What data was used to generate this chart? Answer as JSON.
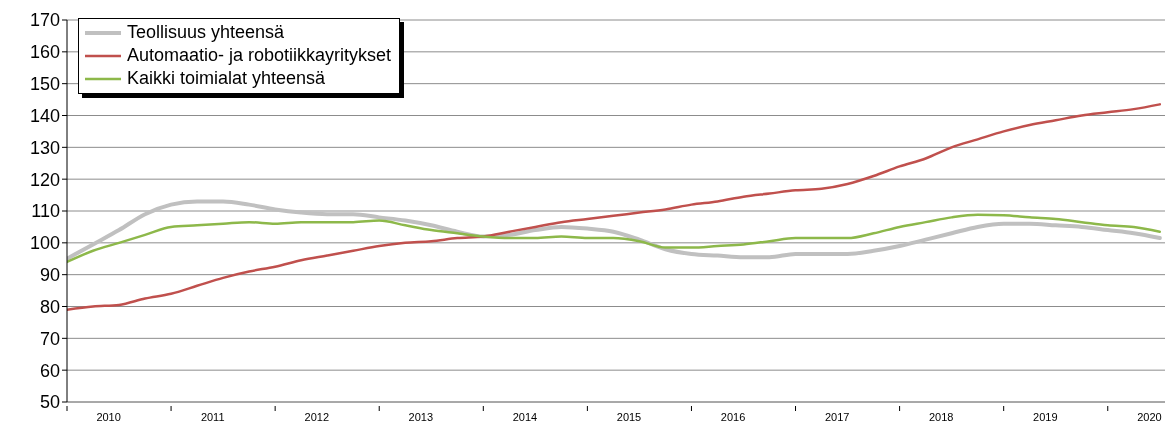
{
  "chart_data": {
    "type": "line",
    "x": [
      2010,
      2010.25,
      2010.5,
      2010.75,
      2011,
      2011.25,
      2011.5,
      2011.75,
      2012,
      2012.25,
      2012.5,
      2012.75,
      2013,
      2013.25,
      2013.5,
      2013.75,
      2014,
      2014.25,
      2014.5,
      2014.75,
      2015,
      2015.25,
      2015.5,
      2015.75,
      2016,
      2016.25,
      2016.5,
      2016.75,
      2017,
      2017.25,
      2017.5,
      2017.75,
      2018,
      2018.25,
      2018.5,
      2018.75,
      2019,
      2019.25,
      2019.5,
      2019.75,
      2020,
      2020.25,
      2020.5
    ],
    "series": [
      {
        "name": "Teollisuus yhteensä",
        "color": "#c0c0c0",
        "values": [
          95,
          99.5,
          104,
          109,
          112,
          113,
          113,
          112,
          110.5,
          109.5,
          109,
          109,
          108,
          107,
          105.5,
          103.5,
          102,
          102.5,
          104,
          105,
          104.5,
          103.5,
          101,
          98,
          96.5,
          96,
          95.5,
          95.5,
          96.5,
          96.5,
          96.5,
          97.5,
          99,
          101,
          103,
          105,
          106,
          106,
          105.5,
          105,
          104,
          103,
          101.5
        ]
      },
      {
        "name": "Automaatio- ja robotiikkayritykset",
        "color": "#c0504d",
        "values": [
          79,
          80,
          80.5,
          82.5,
          84,
          86.5,
          89,
          91,
          92.5,
          94.5,
          96,
          97.5,
          99,
          100,
          100.5,
          101.5,
          102,
          103.5,
          105,
          106.5,
          107.5,
          108.5,
          109.5,
          110.5,
          112,
          113,
          114.5,
          115.5,
          116.5,
          117,
          118.5,
          121,
          124,
          126.5,
          130,
          132.5,
          135,
          137,
          138.5,
          140,
          141,
          142,
          143.5
        ]
      },
      {
        "name": "Kaikki toimialat yhteensä",
        "color": "#8db84a",
        "values": [
          94,
          97.5,
          100,
          102.5,
          105,
          105.5,
          106,
          106.5,
          106,
          106.5,
          106.5,
          106.5,
          107,
          105.5,
          104,
          103,
          102,
          101.5,
          101.5,
          102,
          101.5,
          101.5,
          100.5,
          98.5,
          98.5,
          99,
          99.5,
          100.5,
          101.5,
          101.5,
          101.5,
          103,
          105,
          106.5,
          108,
          108.8,
          108.7,
          108,
          107.5,
          106.5,
          105.5,
          105,
          103.5
        ]
      }
    ],
    "xlim": [
      2010,
      2020.55
    ],
    "xticks": [
      {
        "value": 2010,
        "label": null
      },
      {
        "value": 2010.4,
        "label": "2010"
      },
      {
        "value": 2011,
        "label": null
      },
      {
        "value": 2011.4,
        "label": "2011"
      },
      {
        "value": 2012,
        "label": null
      },
      {
        "value": 2012.4,
        "label": "2012"
      },
      {
        "value": 2013,
        "label": null
      },
      {
        "value": 2013.4,
        "label": "2013"
      },
      {
        "value": 2014,
        "label": null
      },
      {
        "value": 2014.4,
        "label": "2014"
      },
      {
        "value": 2015,
        "label": null
      },
      {
        "value": 2015.4,
        "label": "2015"
      },
      {
        "value": 2016,
        "label": null
      },
      {
        "value": 2016.4,
        "label": "2016"
      },
      {
        "value": 2017,
        "label": null
      },
      {
        "value": 2017.4,
        "label": "2017"
      },
      {
        "value": 2018,
        "label": null
      },
      {
        "value": 2018.4,
        "label": "2018"
      },
      {
        "value": 2019,
        "label": null
      },
      {
        "value": 2019.4,
        "label": "2019"
      },
      {
        "value": 2020,
        "label": null
      },
      {
        "value": 2020.4,
        "label": "2020"
      }
    ],
    "ylim": [
      50,
      170
    ],
    "yticks": [
      50,
      60,
      70,
      80,
      90,
      100,
      110,
      120,
      130,
      140,
      150,
      160,
      170
    ],
    "grid": "y",
    "legend": "top left",
    "marker": "none",
    "line_style": "solid"
  }
}
